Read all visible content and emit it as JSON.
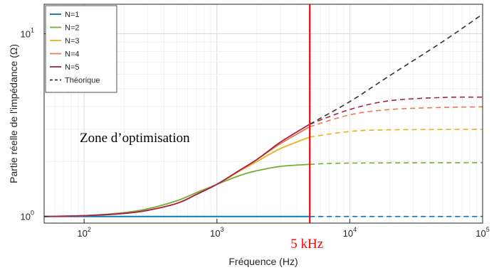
{
  "chart_data": {
    "type": "line",
    "title": "",
    "xlabel": "Fréquence (Hz)",
    "ylabel": "Partie réelle de l'impédance (Ω)",
    "xscale": "log",
    "yscale": "log",
    "xlim": [
      50,
      100000
    ],
    "ylim": [
      0.92,
      14.5
    ],
    "grid": true,
    "legend_position": "top-left",
    "x_ticks": [
      {
        "base": "10",
        "exp": "2",
        "value": 100
      },
      {
        "base": "10",
        "exp": "3",
        "value": 1000
      },
      {
        "base": "10",
        "exp": "4",
        "value": 10000
      },
      {
        "base": "10",
        "exp": "5",
        "value": 100000
      }
    ],
    "y_ticks": [
      {
        "base": "10",
        "exp": "0",
        "value": 1
      },
      {
        "base": "10",
        "exp": "1",
        "value": 10
      }
    ],
    "cutoff_frequency": 5000,
    "cutoff_label": "5 kHz",
    "cutoff_color": "#e8191f",
    "region_label": "Zone d’optimisation",
    "series": [
      {
        "name": "N=1",
        "color": "#0072bd",
        "style": "solid-then-dashed",
        "x": [
          50,
          100,
          1000,
          5000,
          10000,
          100000
        ],
        "y": [
          1.0,
          1.0,
          1.0,
          1.0,
          1.0,
          1.0
        ]
      },
      {
        "name": "N=2",
        "color": "#77ac30",
        "style": "solid-then-dashed",
        "x": [
          50,
          100,
          200,
          300,
          500,
          700,
          1000,
          1500,
          2000,
          3000,
          5000,
          10000,
          100000
        ],
        "y": [
          1.0,
          1.01,
          1.05,
          1.1,
          1.22,
          1.35,
          1.5,
          1.68,
          1.78,
          1.88,
          1.93,
          1.96,
          1.97
        ]
      },
      {
        "name": "N=3",
        "color": "#edb120",
        "style": "solid-then-dashed",
        "x": [
          50,
          100,
          200,
          300,
          500,
          700,
          1000,
          1500,
          2000,
          3000,
          5000,
          10000,
          20000,
          100000
        ],
        "y": [
          1.0,
          1.01,
          1.04,
          1.08,
          1.18,
          1.32,
          1.5,
          1.78,
          2.0,
          2.35,
          2.72,
          2.92,
          2.98,
          3.0
        ]
      },
      {
        "name": "N=4",
        "color": "#ee7a4e",
        "style": "solid-then-dashed",
        "x": [
          50,
          100,
          200,
          300,
          500,
          700,
          1000,
          1500,
          2000,
          3000,
          5000,
          10000,
          20000,
          50000,
          100000
        ],
        "y": [
          1.0,
          1.01,
          1.04,
          1.08,
          1.18,
          1.32,
          1.5,
          1.8,
          2.05,
          2.5,
          3.1,
          3.6,
          3.85,
          3.95,
          3.98
        ]
      },
      {
        "name": "N=5",
        "color": "#a2234a",
        "style": "solid-then-dashed",
        "x": [
          50,
          100,
          200,
          300,
          500,
          700,
          1000,
          1500,
          2000,
          3000,
          5000,
          10000,
          20000,
          50000,
          100000
        ],
        "y": [
          1.0,
          1.01,
          1.04,
          1.08,
          1.18,
          1.32,
          1.5,
          1.8,
          2.05,
          2.55,
          3.2,
          3.85,
          4.3,
          4.48,
          4.5
        ]
      },
      {
        "name": "Théorique",
        "color": "#333333",
        "style": "dashed",
        "x": [
          5000,
          10000,
          20000,
          50000,
          100000
        ],
        "y": [
          3.2,
          4.25,
          5.9,
          9.05,
          12.8
        ]
      }
    ]
  }
}
